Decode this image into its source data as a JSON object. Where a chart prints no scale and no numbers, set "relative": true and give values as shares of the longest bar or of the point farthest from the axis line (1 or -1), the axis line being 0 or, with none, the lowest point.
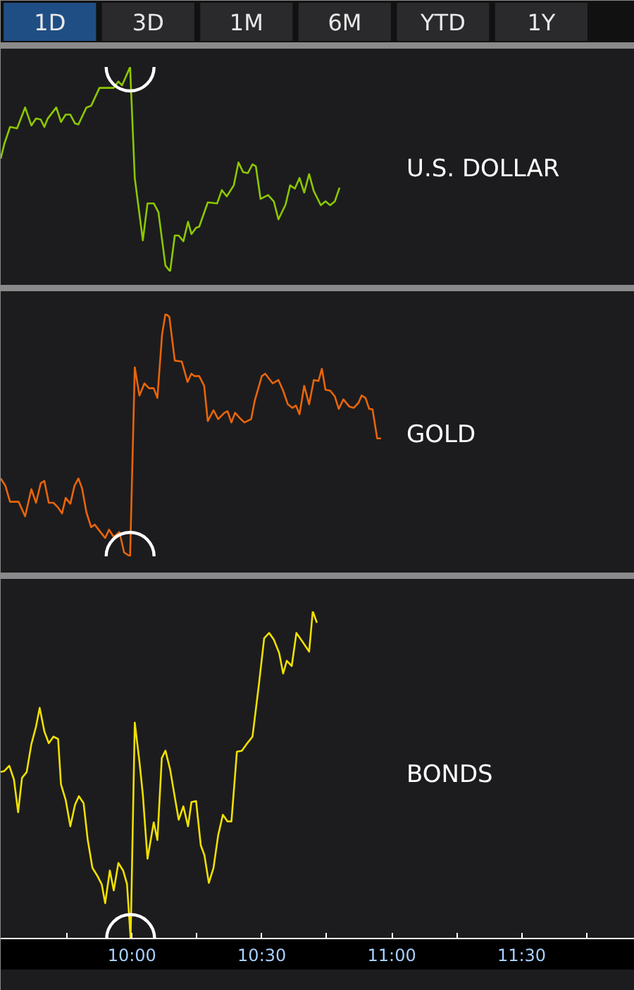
{
  "chart_data": [
    {
      "type": "other",
      "annotations": [
        "1D",
        "3D",
        "1M",
        "6M",
        "YTD",
        "1Y"
      ]
    },
    {
      "type": "line",
      "relative": true,
      "tick_labels": false,
      "xlim": [
        9.495,
        11.935
      ],
      "x": [
        9.495,
        9.509,
        9.531,
        9.558,
        9.589,
        9.613,
        9.631,
        9.649,
        9.663,
        9.676,
        9.709,
        9.727,
        9.745,
        9.763,
        9.781,
        9.794,
        9.825,
        9.843,
        9.875,
        9.93,
        9.948,
        9.962,
        9.993,
        10.011,
        10.042,
        10.06,
        10.084,
        10.102,
        10.129,
        10.147,
        10.165,
        10.18,
        10.198,
        10.216,
        10.229,
        10.247,
        10.259,
        10.292,
        10.328,
        10.346,
        10.365,
        10.392,
        10.41,
        10.428,
        10.446,
        10.464,
        10.477,
        10.495,
        10.524,
        10.546,
        10.564,
        10.591,
        10.609,
        10.627,
        10.645,
        10.663,
        10.682,
        10.7,
        10.727,
        10.745,
        10.763,
        10.781,
        10.799
      ],
      "series": [
        {
          "name": "U.S. DOLLAR",
          "color": "#8cc800",
          "values": [
            0.552,
            0.624,
            0.707,
            0.7,
            0.802,
            0.714,
            0.748,
            0.743,
            0.707,
            0.748,
            0.802,
            0.731,
            0.767,
            0.767,
            0.724,
            0.719,
            0.802,
            0.81,
            0.898,
            0.898,
            0.929,
            0.91,
            1,
            0.457,
            0.152,
            0.333,
            0.333,
            0.29,
            0.029,
            0,
            0.176,
            0.176,
            0.148,
            0.243,
            0.183,
            0.214,
            0.219,
            0.338,
            0.333,
            0.398,
            0.367,
            0.421,
            0.533,
            0.486,
            0.481,
            0.524,
            0.514,
            0.355,
            0.374,
            0.343,
            0.255,
            0.326,
            0.421,
            0.405,
            0.457,
            0.386,
            0.476,
            0.393,
            0.324,
            0.343,
            0.324,
            0.343,
            0.41
          ]
        }
      ]
    },
    {
      "type": "line",
      "relative": true,
      "tick_labels": false,
      "xlim": [
        9.495,
        11.935
      ],
      "x": [
        9.495,
        9.513,
        9.531,
        9.564,
        9.589,
        9.613,
        9.631,
        9.649,
        9.663,
        9.68,
        9.698,
        9.716,
        9.731,
        9.745,
        9.763,
        9.779,
        9.794,
        9.808,
        9.825,
        9.843,
        9.857,
        9.879,
        9.897,
        9.912,
        9.93,
        9.952,
        9.97,
        9.993,
        10.011,
        10.029,
        10.048,
        10.066,
        10.084,
        10.098,
        10.116,
        10.129,
        10.144,
        10.165,
        10.192,
        10.214,
        10.229,
        10.241,
        10.259,
        10.278,
        10.292,
        10.314,
        10.332,
        10.356,
        10.368,
        10.383,
        10.397,
        10.419,
        10.433,
        10.459,
        10.473,
        10.5,
        10.513,
        10.542,
        10.564,
        10.582,
        10.6,
        10.618,
        10.631,
        10.645,
        10.663,
        10.682,
        10.7,
        10.718,
        10.731,
        10.745,
        10.763,
        10.781,
        10.796,
        10.814,
        10.836,
        10.854,
        10.872,
        10.884,
        10.899,
        10.913,
        10.926,
        10.944,
        10.959
      ],
      "series": [
        {
          "name": "GOLD",
          "color": "#e8650a",
          "values": [
            0.321,
            0.291,
            0.225,
            0.225,
            0.165,
            0.277,
            0.221,
            0.301,
            0.311,
            0.221,
            0.221,
            0.201,
            0.177,
            0.241,
            0.217,
            0.291,
            0.321,
            0.281,
            0.181,
            0.12,
            0.131,
            0.1,
            0.076,
            0.11,
            0.08,
            0.1,
            0.016,
            0,
            0.779,
            0.663,
            0.713,
            0.693,
            0.693,
            0.653,
            0.914,
            1,
            0.988,
            0.807,
            0.803,
            0.719,
            0.753,
            0.743,
            0.743,
            0.703,
            0.558,
            0.602,
            0.566,
            0.592,
            0.598,
            0.552,
            0.592,
            0.566,
            0.552,
            0.566,
            0.643,
            0.743,
            0.753,
            0.713,
            0.727,
            0.683,
            0.627,
            0.612,
            0.622,
            0.586,
            0.703,
            0.627,
            0.727,
            0.723,
            0.773,
            0.687,
            0.683,
            0.659,
            0.608,
            0.647,
            0.618,
            0.612,
            0.633,
            0.663,
            0.653,
            0.608,
            0.606,
            0.486,
            0.486
          ]
        }
      ]
    },
    {
      "type": "line",
      "relative": true,
      "tick_labels": "x",
      "xlim": [
        9.495,
        11.935
      ],
      "xticks": [
        {
          "value": 9.75,
          "label": null
        },
        {
          "value": 10,
          "label": "10:00"
        },
        {
          "value": 10.25,
          "label": null
        },
        {
          "value": 10.5,
          "label": "10:30"
        },
        {
          "value": 10.75,
          "label": null
        },
        {
          "value": 11,
          "label": "11:00"
        },
        {
          "value": 11.25,
          "label": null
        },
        {
          "value": 11.5,
          "label": "11:30"
        },
        {
          "value": 11.75,
          "label": null
        }
      ],
      "x": [
        9.495,
        9.509,
        9.528,
        9.546,
        9.562,
        9.577,
        9.595,
        9.613,
        9.631,
        9.645,
        9.663,
        9.68,
        9.698,
        9.716,
        9.727,
        9.745,
        9.763,
        9.781,
        9.796,
        9.814,
        9.83,
        9.848,
        9.866,
        9.884,
        9.897,
        9.915,
        9.93,
        9.948,
        9.966,
        9.981,
        9.995,
        10.011,
        10.029,
        10.042,
        10.06,
        10.084,
        10.098,
        10.115,
        10.129,
        10.147,
        10.165,
        10.18,
        10.198,
        10.216,
        10.229,
        10.247,
        10.265,
        10.279,
        10.296,
        10.314,
        10.332,
        10.35,
        10.368,
        10.383,
        10.404,
        10.423,
        10.441,
        10.464,
        10.488,
        10.509,
        10.528,
        10.546,
        10.567,
        10.582,
        10.596,
        10.615,
        10.633,
        10.654,
        10.682,
        10.696,
        10.712
      ],
      "series": [
        {
          "name": "BONDS",
          "color": "#f0e000",
          "values": [
            0.509,
            0.512,
            0.528,
            0.486,
            0.386,
            0.491,
            0.509,
            0.594,
            0.648,
            0.705,
            0.633,
            0.597,
            0.617,
            0.61,
            0.471,
            0.424,
            0.343,
            0.409,
            0.435,
            0.414,
            0.301,
            0.216,
            0.193,
            0.165,
            0.108,
            0.208,
            0.147,
            0.231,
            0.208,
            0.167,
            0,
            0.66,
            0.54,
            0.44,
            0.244,
            0.355,
            0.301,
            0.552,
            0.574,
            0.517,
            0.432,
            0.363,
            0.404,
            0.343,
            0.417,
            0.42,
            0.285,
            0.255,
            0.17,
            0.216,
            0.316,
            0.378,
            0.358,
            0.358,
            0.571,
            0.574,
            0.594,
            0.617,
            0.772,
            0.918,
            0.934,
            0.914,
            0.872,
            0.81,
            0.849,
            0.833,
            0.934,
            0.91,
            0.877,
            1,
            0.965
          ]
        }
      ]
    }
  ]
}
